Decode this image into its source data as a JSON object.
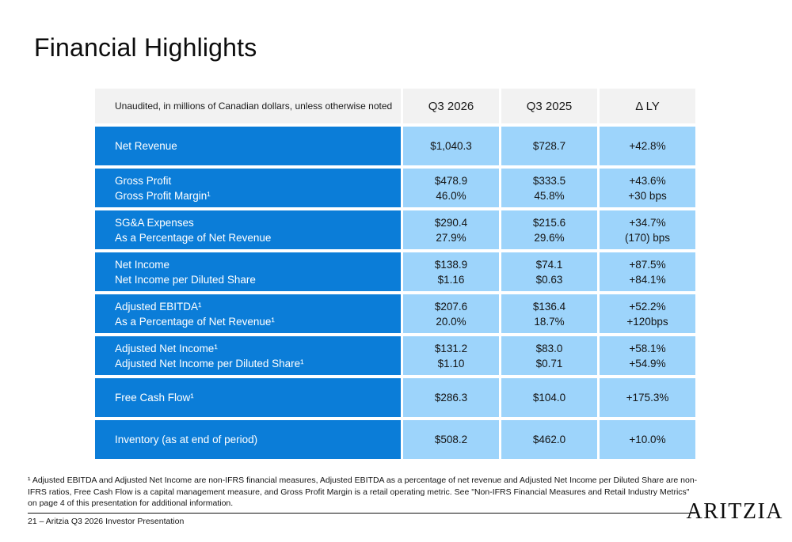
{
  "page": {
    "title": "Financial Highlights",
    "footer": "21 – Aritzia Q3 2026 Investor Presentation",
    "logo": "ARITZIA",
    "footnote": "¹ Adjusted EBITDA and Adjusted Net Income are non-IFRS financial measures, Adjusted EBITDA as a percentage of net revenue and Adjusted Net Income per Diluted Share are non-IFRS ratios, Free Cash Flow is a capital management measure, and Gross Profit Margin is a retail operating metric. See \"Non-IFRS Financial Measures and Retail Industry Metrics\" on page 4 of this presentation for additional information."
  },
  "colors": {
    "row_label_bg": "#0b7dd8",
    "value_bg": "#9dd4fb",
    "header_bg": "#f2f2f2"
  },
  "table": {
    "header": {
      "note": "Unaudited, in millions of Canadian dollars, unless otherwise noted",
      "col_q3_2026": "Q3 2026",
      "col_q3_2025": "Q3 2025",
      "col_delta": "Δ LY"
    },
    "rows": [
      {
        "label_lines": [
          "Net Revenue"
        ],
        "q3_2026": [
          "$1,040.3"
        ],
        "q3_2025": [
          "$728.7"
        ],
        "delta": [
          "+42.8%"
        ]
      },
      {
        "label_lines": [
          "Gross Profit",
          "Gross Profit Margin¹"
        ],
        "q3_2026": [
          "$478.9",
          "46.0%"
        ],
        "q3_2025": [
          "$333.5",
          "45.8%"
        ],
        "delta": [
          "+43.6%",
          "+30 bps"
        ]
      },
      {
        "label_lines": [
          "SG&A Expenses",
          "As a Percentage of Net Revenue"
        ],
        "q3_2026": [
          "$290.4",
          "27.9%"
        ],
        "q3_2025": [
          "$215.6",
          "29.6%"
        ],
        "delta": [
          "+34.7%",
          "(170) bps"
        ]
      },
      {
        "label_lines": [
          "Net Income",
          "Net Income per Diluted Share"
        ],
        "q3_2026": [
          "$138.9",
          "$1.16"
        ],
        "q3_2025": [
          "$74.1",
          "$0.63"
        ],
        "delta": [
          "+87.5%",
          "+84.1%"
        ]
      },
      {
        "label_lines": [
          "Adjusted EBITDA¹",
          "As a Percentage of Net Revenue¹"
        ],
        "q3_2026": [
          "$207.6",
          "20.0%"
        ],
        "q3_2025": [
          "$136.4",
          "18.7%"
        ],
        "delta": [
          "+52.2%",
          "+120bps"
        ]
      },
      {
        "label_lines": [
          "Adjusted Net Income¹",
          "Adjusted Net Income per Diluted Share¹"
        ],
        "q3_2026": [
          "$131.2",
          "$1.10"
        ],
        "q3_2025": [
          "$83.0",
          "$0.71"
        ],
        "delta": [
          "+58.1%",
          "+54.9%"
        ]
      },
      {
        "label_lines": [
          "Free Cash Flow¹"
        ],
        "q3_2026": [
          "$286.3"
        ],
        "q3_2025": [
          "$104.0"
        ],
        "delta": [
          "+175.3%"
        ]
      },
      {
        "label_lines": [
          "Inventory (as at end of period)"
        ],
        "q3_2026": [
          "$508.2"
        ],
        "q3_2025": [
          "$462.0"
        ],
        "delta": [
          "+10.0%"
        ]
      }
    ]
  }
}
